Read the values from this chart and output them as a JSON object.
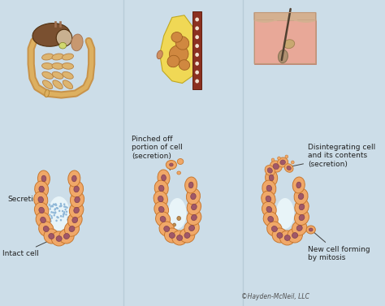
{
  "background_color": "#ccdde8",
  "cell_fill": "#f0a868",
  "cell_edge": "#c87830",
  "nucleus_fill": "#a05868",
  "nucleus_edge": "#804050",
  "lumen_color": "#e8f4f8",
  "labels": {
    "secretion": "Secretion",
    "intact_cell": "Intact cell",
    "pinched_off": "Pinched off\nportion of cell\n(secretion)",
    "disintegrating": "Disintegrating cell\nand its contents\n(secretion)",
    "new_cell": "New cell forming\nby mitosis",
    "copyright": "©Hayden-McNeil, LLC"
  },
  "text_color": "#202020",
  "font_size_label": 6.5,
  "font_size_small": 5.5
}
